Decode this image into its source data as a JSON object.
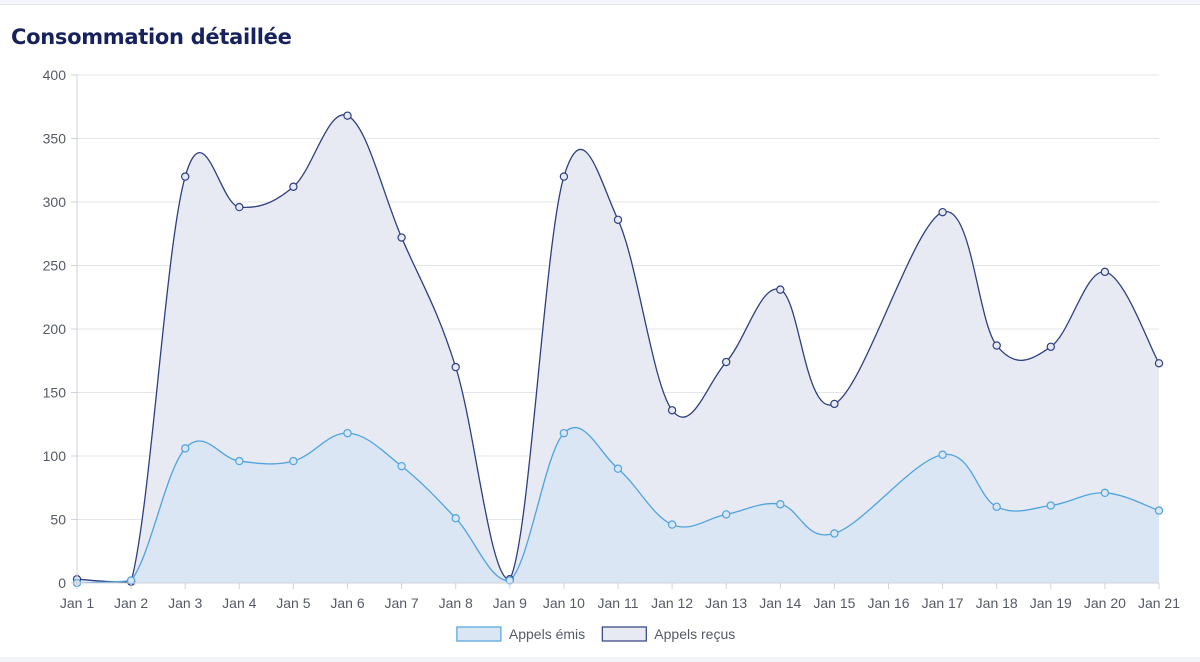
{
  "card": {
    "title": "Consommation détaillée"
  },
  "chart_data": {
    "type": "area",
    "categories": [
      "Jan 1",
      "Jan 2",
      "Jan 3",
      "Jan 4",
      "Jan 5",
      "Jan 6",
      "Jan 7",
      "Jan 8",
      "Jan 9",
      "Jan 10",
      "Jan 11",
      "Jan 12",
      "Jan 13",
      "Jan 14",
      "Jan 15",
      "Jan 16",
      "Jan 17",
      "Jan 18",
      "Jan 19",
      "Jan 20",
      "Jan 21"
    ],
    "series": [
      {
        "name": "Appels reçus",
        "values": [
          3,
          1,
          320,
          296,
          312,
          368,
          272,
          170,
          3,
          320,
          286,
          136,
          174,
          231,
          141,
          null,
          292,
          187,
          186,
          245,
          173
        ],
        "color": "#2e3f7f",
        "fill": "#e8eaf3"
      },
      {
        "name": "Appels émis",
        "values": [
          0,
          2,
          106,
          96,
          96,
          118,
          92,
          51,
          2,
          118,
          90,
          46,
          54,
          62,
          39,
          null,
          101,
          60,
          61,
          71,
          57
        ],
        "color": "#4fa3dd",
        "fill": "#dae6f4"
      }
    ],
    "ylim": [
      0,
      400
    ],
    "yticks": [
      0,
      50,
      100,
      150,
      200,
      250,
      300,
      350,
      400
    ],
    "grid": true,
    "legend_position": "bottom",
    "legend_order": [
      "Appels émis",
      "Appels reçus"
    ]
  }
}
